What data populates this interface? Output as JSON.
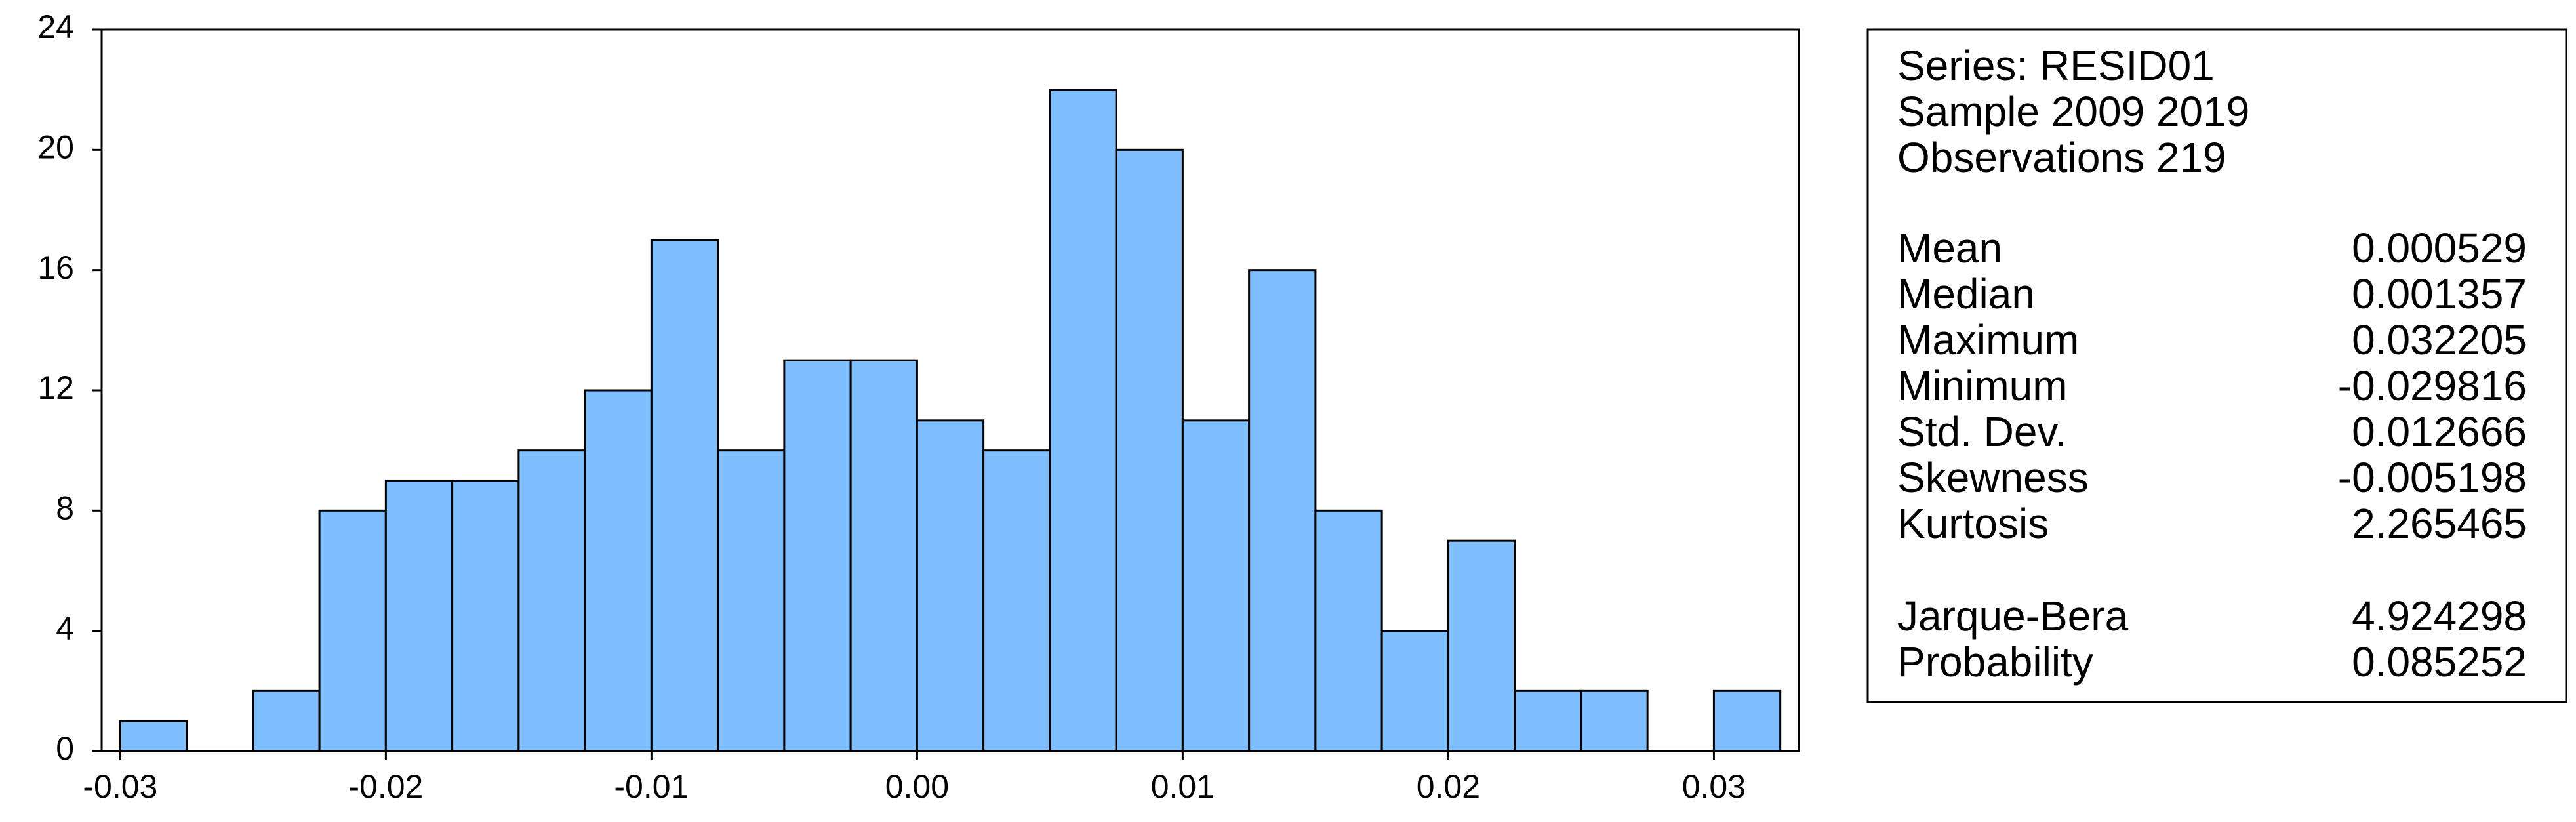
{
  "chart_data": {
    "type": "histogram",
    "bins": [
      -0.03,
      -0.0275,
      -0.025,
      -0.0225,
      -0.02,
      -0.0175,
      -0.015,
      -0.0125,
      -0.01,
      -0.0075,
      -0.005,
      -0.0025,
      0,
      0.0025,
      0.005,
      0.0075,
      0.01,
      0.0125,
      0.015,
      0.0175,
      0.02,
      0.0225,
      0.025,
      0.0275,
      0.03,
      0.0325
    ],
    "values": [
      1,
      0,
      2,
      8,
      9,
      9,
      10,
      12,
      17,
      10,
      13,
      13,
      11,
      10,
      22,
      20,
      11,
      16,
      8,
      4,
      7,
      2,
      2,
      0,
      2
    ],
    "color": "#80bfff",
    "xlim": [
      -0.0307,
      0.0332
    ],
    "xticks": [
      -0.03,
      -0.02,
      -0.01,
      {
        "value": 0,
        "label": "0.00"
      },
      0.01,
      0.02,
      0.03
    ],
    "ylim": [
      0,
      24
    ],
    "yticks": [
      0,
      4,
      8,
      12,
      16,
      20,
      24
    ],
    "stats_box": {
      "header": [
        "Series: RESID01",
        "Sample 2009 2019",
        "Observations 219"
      ],
      "stats": [
        {
          "label": "Mean",
          "value": "0.000529"
        },
        {
          "label": "Median",
          "value": "0.001357"
        },
        {
          "label": "Maximum",
          "value": "0.032205"
        },
        {
          "label": "Minimum",
          "value": "-0.029816"
        },
        {
          "label": "Std. Dev.",
          "value": "0.012666"
        },
        {
          "label": "Skewness",
          "value": "-0.005198"
        },
        {
          "label": "Kurtosis",
          "value": "2.265465"
        }
      ],
      "tests": [
        {
          "label": "Jarque-Bera",
          "value": "4.924298"
        },
        {
          "label": "Probability",
          "value": "0.085252"
        }
      ]
    }
  }
}
